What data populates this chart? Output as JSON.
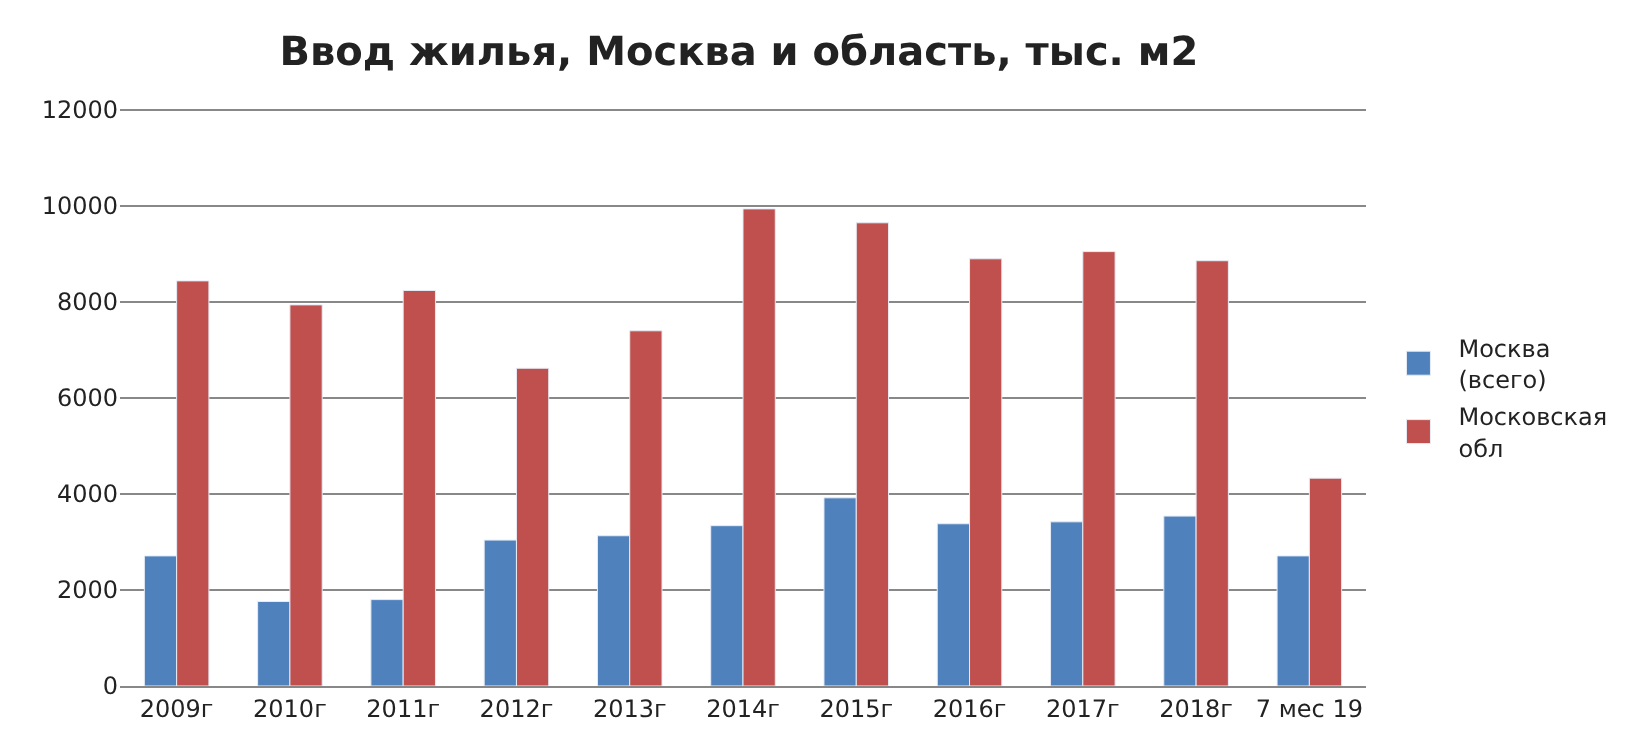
{
  "chart_data": {
    "type": "bar",
    "title": "Ввод жилья, Москва и область, тыс. м2",
    "categories": [
      "2009г",
      "2010г",
      "2011г",
      "2012г",
      "2013г",
      "2014г",
      "2015г",
      "2016г",
      "2017г",
      "2018г",
      "7 мес 19"
    ],
    "series": [
      {
        "name": "Москва (всего)",
        "color": "#4f81bd",
        "values": [
          2710,
          1760,
          1800,
          3040,
          3130,
          3340,
          3920,
          3380,
          3420,
          3540,
          2710
        ]
      },
      {
        "name": "Московская обл",
        "color": "#c0504d",
        "values": [
          8440,
          7940,
          8240,
          6620,
          7400,
          9940,
          9650,
          8900,
          9050,
          8860,
          4330
        ]
      }
    ],
    "ylim": [
      0,
      12000
    ],
    "yticks": [
      0,
      2000,
      4000,
      6000,
      8000,
      10000,
      12000
    ],
    "grid": "y",
    "legend": "right"
  }
}
